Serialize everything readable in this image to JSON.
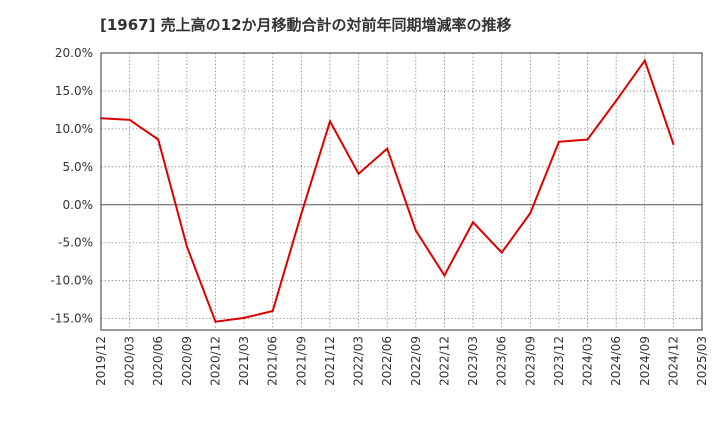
{
  "chart_data": {
    "type": "line",
    "title": "[1967]  売上高の12か月移動合計の対前年同期増減率の推移",
    "xlabel": "",
    "ylabel": "",
    "ylim": [
      -16.5,
      20
    ],
    "y_ticks": [
      20,
      15,
      10,
      5,
      0,
      -5,
      -10,
      -15
    ],
    "y_tick_labels": [
      "20.0%",
      "15.0%",
      "10.0%",
      "5.0%",
      "0.0%",
      "-5.0%",
      "-10.0%",
      "-15.0%"
    ],
    "x_tick_labels": [
      "2019/12",
      "2020/03",
      "2020/06",
      "2020/09",
      "2020/12",
      "2021/03",
      "2021/06",
      "2021/09",
      "2021/12",
      "2022/03",
      "2022/06",
      "2022/09",
      "2022/12",
      "2023/03",
      "2023/06",
      "2023/09",
      "2023/12",
      "2024/03",
      "2024/06",
      "2024/09",
      "2024/12",
      "2025/03"
    ],
    "series": [
      {
        "name": "増減率",
        "color": "#dd0000",
        "x": [
          "2019/12",
          "2020/03",
          "2020/06",
          "2020/09",
          "2020/12",
          "2021/03",
          "2021/06",
          "2021/09",
          "2021/12",
          "2022/03",
          "2022/06",
          "2022/09",
          "2022/12",
          "2023/03",
          "2023/06",
          "2023/09",
          "2023/12",
          "2024/03",
          "2024/06",
          "2024/09",
          "2024/12"
        ],
        "values": [
          11.4,
          11.2,
          8.6,
          -5.5,
          -15.4,
          -14.9,
          -14.0,
          -1.2,
          11.0,
          4.1,
          7.4,
          -3.4,
          -9.3,
          -2.3,
          -6.3,
          -1.1,
          8.3,
          8.6,
          13.7,
          19.0,
          8.0
        ]
      }
    ],
    "grid": true,
    "legend": "none"
  }
}
